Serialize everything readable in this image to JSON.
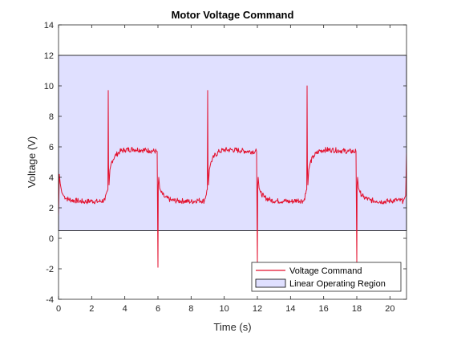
{
  "chart_data": {
    "type": "line",
    "title": "Motor Voltage Command",
    "xlabel": "Time (s)",
    "ylabel": "Voltage (V)",
    "xlim": [
      0,
      21
    ],
    "ylim": [
      -4,
      14
    ],
    "xticks": [
      0,
      2,
      4,
      6,
      8,
      10,
      12,
      14,
      16,
      18,
      20
    ],
    "yticks": [
      -4,
      -2,
      0,
      2,
      4,
      6,
      8,
      10,
      12,
      14
    ],
    "grid": false,
    "legend_position": "bottom-right",
    "region": {
      "name": "Linear Operating Region",
      "x": [
        0,
        21
      ],
      "y": [
        0.5,
        12
      ],
      "fill_color": "#e0e0ff",
      "edge_color": "#000000"
    },
    "series": [
      {
        "name": "Voltage Command",
        "color": "#e3102d",
        "x": [
          0,
          0.05,
          0.1,
          0.15,
          0.2,
          0.3,
          0.5,
          0.8,
          1.2,
          1.6,
          2.0,
          2.4,
          2.8,
          2.98,
          3.0,
          3.02,
          3.05,
          3.1,
          3.2,
          3.4,
          3.7,
          4.0,
          4.5,
          5.0,
          5.5,
          5.95,
          6.0,
          6.02,
          6.05,
          6.1,
          6.2,
          6.4,
          6.8,
          7.2,
          7.6,
          8.0,
          8.4,
          8.8,
          8.98,
          9.0,
          9.02,
          9.05,
          9.1,
          9.2,
          9.4,
          9.7,
          10.0,
          10.5,
          11.0,
          11.5,
          11.95,
          12.0,
          12.02,
          12.05,
          12.1,
          12.2,
          12.4,
          12.8,
          13.2,
          13.6,
          14.0,
          14.4,
          14.8,
          14.98,
          15.0,
          15.02,
          15.05,
          15.1,
          15.2,
          15.4,
          15.7,
          16.0,
          16.5,
          17.0,
          17.5,
          17.95,
          18.0,
          18.02,
          18.05,
          18.1,
          18.2,
          18.4,
          18.8,
          19.2,
          19.6,
          20.0,
          20.4,
          20.8,
          20.95,
          21.0
        ],
        "y": [
          1.5,
          4.2,
          3.6,
          3.3,
          3.0,
          2.8,
          2.6,
          2.5,
          2.45,
          2.4,
          2.45,
          2.4,
          2.5,
          3.2,
          9.7,
          4.8,
          3.5,
          4.5,
          5.0,
          5.4,
          5.7,
          5.8,
          5.85,
          5.8,
          5.75,
          5.7,
          -1.9,
          3.5,
          4.0,
          3.3,
          3.0,
          2.7,
          2.5,
          2.45,
          2.45,
          2.4,
          2.5,
          2.45,
          3.2,
          9.7,
          4.8,
          3.5,
          4.5,
          5.0,
          5.4,
          5.7,
          5.8,
          5.8,
          5.75,
          5.7,
          5.7,
          -1.6,
          3.5,
          4.0,
          3.3,
          3.0,
          2.7,
          2.5,
          2.45,
          2.45,
          2.4,
          2.5,
          2.45,
          3.2,
          10.0,
          4.8,
          3.5,
          4.5,
          5.0,
          5.4,
          5.7,
          5.8,
          5.8,
          5.75,
          5.7,
          5.7,
          -1.6,
          3.5,
          4.0,
          3.3,
          3.0,
          2.7,
          2.5,
          2.45,
          2.4,
          2.45,
          2.5,
          2.45,
          2.8,
          5.6
        ]
      }
    ]
  }
}
